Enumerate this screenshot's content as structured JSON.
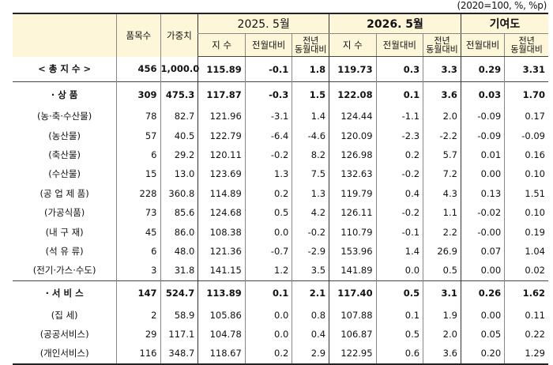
{
  "unit_note": "(2020=100, %, %p)",
  "headers": {
    "items": "품목수",
    "weight": "가중치",
    "group1": "2025. 5월",
    "group2": "2026. 5월",
    "group3": "기여도",
    "index": "지 수",
    "mom": "전월대비",
    "yoy_line1": "전년",
    "yoy_line2": "동월대비"
  },
  "rows": [
    {
      "label": "< 총 지 수 >",
      "items": "456",
      "weight": "1,000.0",
      "i25": "115.89",
      "m25": "-0.1",
      "y25": "1.8",
      "i26": "119.73",
      "m26": "0.3",
      "y26": "3.3",
      "cm": "0.29",
      "cy": "3.31"
    },
    {
      "label": "· 상        품",
      "items": "309",
      "weight": "475.3",
      "i25": "117.87",
      "m25": "-0.3",
      "y25": "1.5",
      "i26": "122.08",
      "m26": "0.1",
      "y26": "3.6",
      "cm": "0.03",
      "cy": "1.70"
    },
    {
      "label": "(농·축·수산물)",
      "items": "78",
      "weight": "82.7",
      "i25": "121.96",
      "m25": "-3.1",
      "y25": "1.4",
      "i26": "124.44",
      "m26": "-1.1",
      "y26": "2.0",
      "cm": "-0.09",
      "cy": "0.17"
    },
    {
      "label": "(농산물)",
      "items": "57",
      "weight": "40.5",
      "i25": "122.79",
      "m25": "-6.4",
      "y25": "-4.6",
      "i26": "120.09",
      "m26": "-2.3",
      "y26": "-2.2",
      "cm": "-0.09",
      "cy": "-0.09"
    },
    {
      "label": "(축산물)",
      "items": "6",
      "weight": "29.2",
      "i25": "120.11",
      "m25": "-0.2",
      "y25": "8.2",
      "i26": "126.98",
      "m26": "0.2",
      "y26": "5.7",
      "cm": "0.01",
      "cy": "0.16"
    },
    {
      "label": "(수산물)",
      "items": "15",
      "weight": "13.0",
      "i25": "123.69",
      "m25": "1.3",
      "y25": "7.5",
      "i26": "132.63",
      "m26": "-0.2",
      "y26": "7.2",
      "cm": "0.00",
      "cy": "0.10"
    },
    {
      "label": "(공 업 제 품)",
      "items": "228",
      "weight": "360.8",
      "i25": "114.89",
      "m25": "0.2",
      "y25": "1.3",
      "i26": "119.79",
      "m26": "0.4",
      "y26": "4.3",
      "cm": "0.13",
      "cy": "1.51"
    },
    {
      "label": "(가공식품)",
      "items": "73",
      "weight": "85.6",
      "i25": "124.68",
      "m25": "0.5",
      "y25": "4.2",
      "i26": "126.11",
      "m26": "-0.2",
      "y26": "1.1",
      "cm": "-0.02",
      "cy": "0.10"
    },
    {
      "label": "(내 구 재)",
      "items": "45",
      "weight": "86.0",
      "i25": "108.38",
      "m25": "0.0",
      "y25": "-0.2",
      "i26": "110.79",
      "m26": "-0.1",
      "y26": "2.2",
      "cm": "-0.00",
      "cy": "0.19"
    },
    {
      "label": "(석 유 류)",
      "items": "6",
      "weight": "48.0",
      "i25": "121.36",
      "m25": "-0.7",
      "y25": "-2.9",
      "i26": "153.96",
      "m26": "1.4",
      "y26": "26.9",
      "cm": "0.07",
      "cy": "1.04"
    },
    {
      "label": "(전기·가스·수도)",
      "items": "3",
      "weight": "31.8",
      "i25": "141.15",
      "m25": "1.2",
      "y25": "3.5",
      "i26": "141.89",
      "m26": "0.0",
      "y26": "0.5",
      "cm": "0.00",
      "cy": "0.02"
    },
    {
      "label": "· 서 비 스",
      "items": "147",
      "weight": "524.7",
      "i25": "113.89",
      "m25": "0.1",
      "y25": "2.1",
      "i26": "117.40",
      "m26": "0.5",
      "y26": "3.1",
      "cm": "0.26",
      "cy": "1.62"
    },
    {
      "label": "(집 세)",
      "items": "2",
      "weight": "58.9",
      "i25": "105.86",
      "m25": "0.0",
      "y25": "0.8",
      "i26": "107.88",
      "m26": "0.1",
      "y26": "1.9",
      "cm": "0.00",
      "cy": "0.11"
    },
    {
      "label": "(공공서비스)",
      "items": "29",
      "weight": "117.1",
      "i25": "104.78",
      "m25": "0.0",
      "y25": "0.4",
      "i26": "106.87",
      "m26": "0.5",
      "y26": "2.0",
      "cm": "0.05",
      "cy": "0.22"
    },
    {
      "label": "(개인서비스)",
      "items": "116",
      "weight": "348.7",
      "i25": "118.67",
      "m25": "0.2",
      "y25": "2.9",
      "i26": "122.95",
      "m26": "0.6",
      "y26": "3.6",
      "cm": "0.20",
      "cy": "1.29"
    }
  ]
}
